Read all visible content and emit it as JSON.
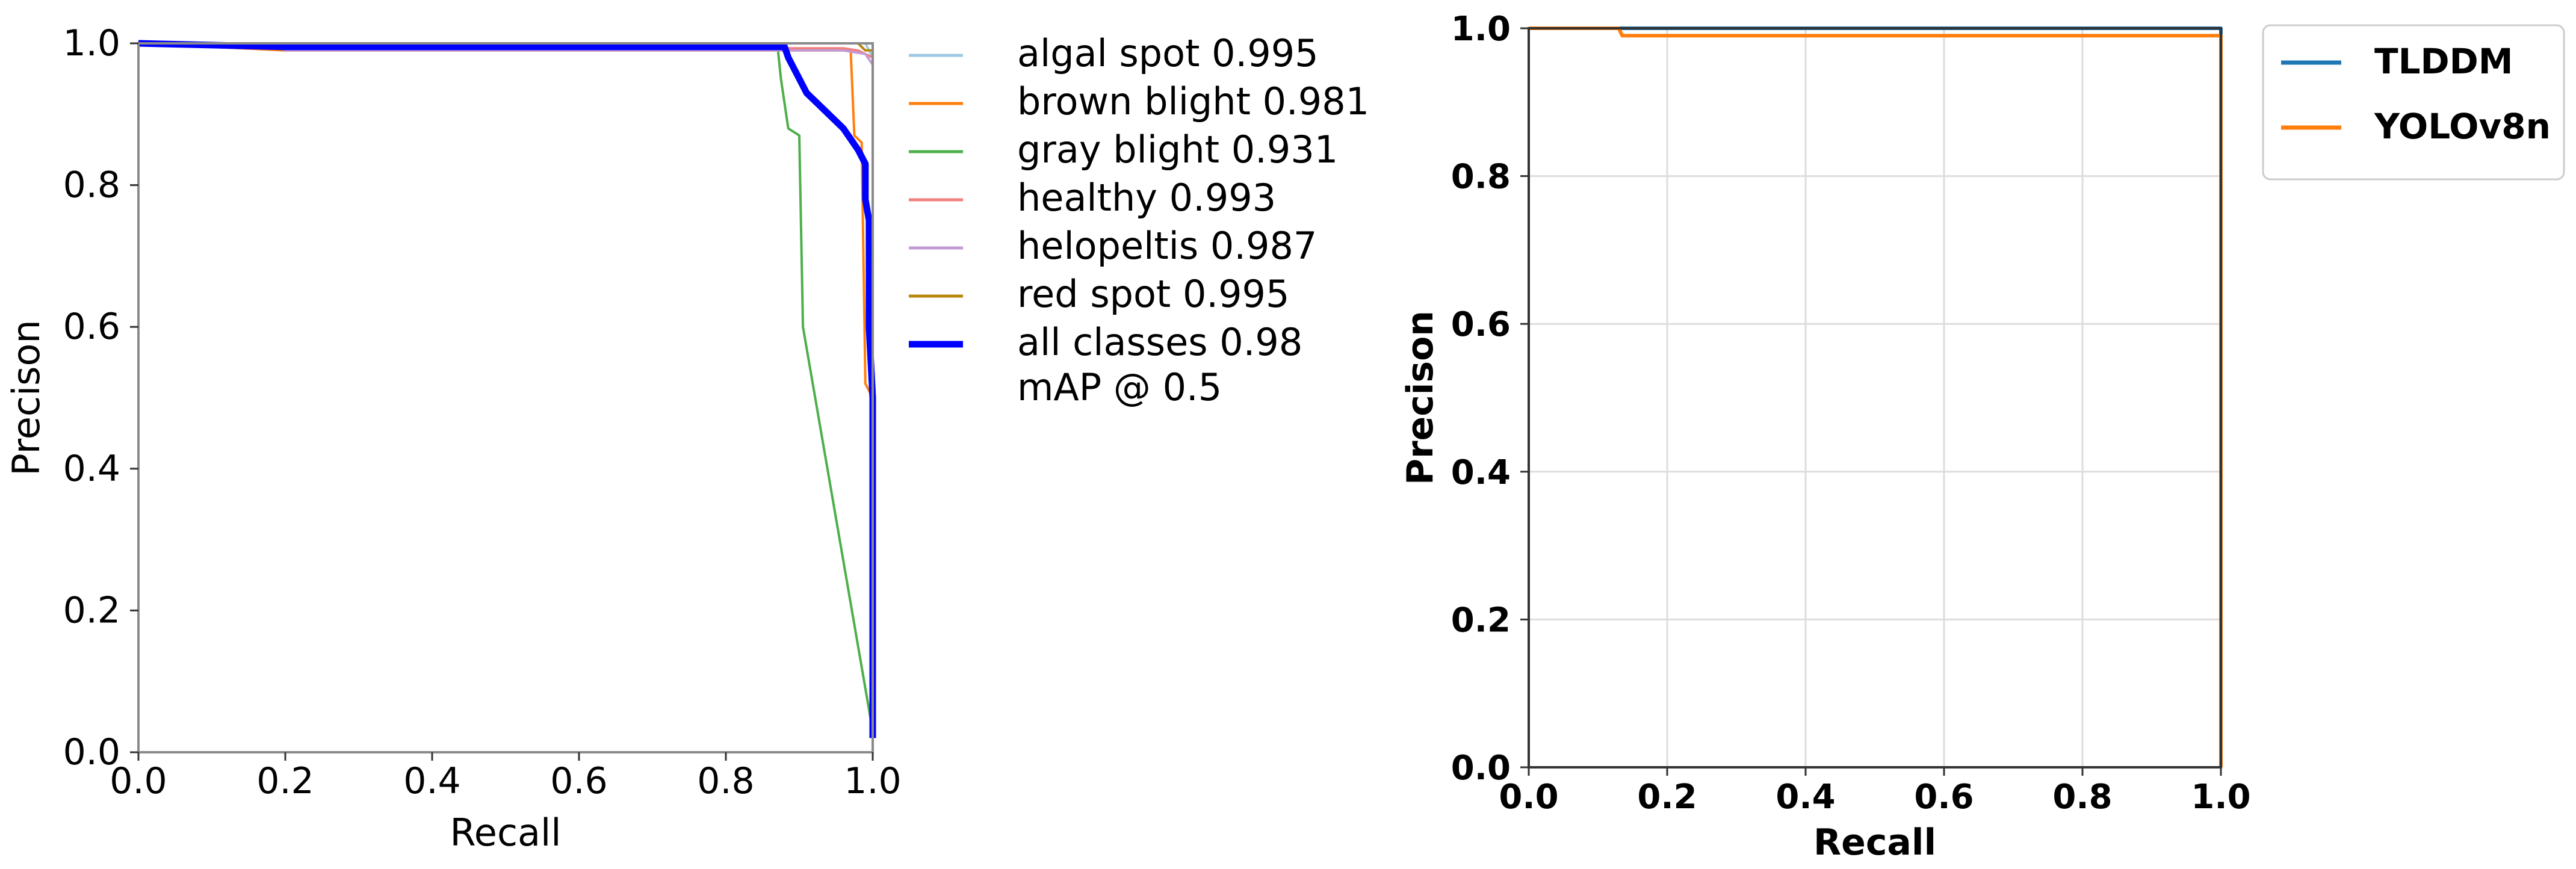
{
  "chart_data": [
    {
      "type": "line",
      "title": "",
      "xlabel": "Recall",
      "ylabel": "Precison",
      "xlim": [
        0,
        1
      ],
      "ylim": [
        0,
        1
      ],
      "xticks": [
        "0.0",
        "0.2",
        "0.4",
        "0.6",
        "0.8",
        "1.0"
      ],
      "yticks": [
        "0.0",
        "0.2",
        "0.4",
        "0.6",
        "0.8",
        "1.0"
      ],
      "grid": false,
      "legend_position": "outside-right",
      "legend_note": "mAP @ 0.5",
      "series": [
        {
          "name": "algal spot 0.995",
          "color": "#9ecae1",
          "width": 4,
          "points": [
            [
              0,
              1.0
            ],
            [
              0.99,
              1.0
            ],
            [
              0.995,
              0.99
            ],
            [
              1.0,
              0.98
            ],
            [
              1.0,
              0.0
            ]
          ]
        },
        {
          "name": "brown blight 0.981",
          "color": "#ff7f0e",
          "width": 4,
          "points": [
            [
              0,
              1.0
            ],
            [
              0.2,
              0.99
            ],
            [
              0.97,
              0.99
            ],
            [
              0.975,
              0.87
            ],
            [
              0.985,
              0.86
            ],
            [
              0.99,
              0.52
            ],
            [
              1.0,
              0.5
            ],
            [
              1.0,
              0.0
            ]
          ]
        },
        {
          "name": "gray blight 0.931",
          "color": "#4daf4a",
          "width": 4,
          "points": [
            [
              0,
              1.0
            ],
            [
              0.87,
              1.0
            ],
            [
              0.875,
              0.95
            ],
            [
              0.885,
              0.88
            ],
            [
              0.9,
              0.87
            ],
            [
              0.905,
              0.6
            ],
            [
              1.0,
              0.03
            ]
          ]
        },
        {
          "name": "healthy 0.993",
          "color": "#f08080",
          "width": 4,
          "points": [
            [
              0,
              1.0
            ],
            [
              0.21,
              0.993
            ],
            [
              0.96,
              0.993
            ],
            [
              0.98,
              0.99
            ],
            [
              1.0,
              0.98
            ],
            [
              1.0,
              0.0
            ]
          ]
        },
        {
          "name": "helopeltis 0.987",
          "color": "#c39bd3",
          "width": 4,
          "points": [
            [
              0,
              1.0
            ],
            [
              0.19,
              1.0
            ],
            [
              0.2,
              0.99
            ],
            [
              0.96,
              0.99
            ],
            [
              0.99,
              0.985
            ],
            [
              1.0,
              0.97
            ],
            [
              1.0,
              0.0
            ]
          ]
        },
        {
          "name": "red spot 0.995",
          "color": "#b8860b",
          "width": 4,
          "points": [
            [
              0,
              1.0
            ],
            [
              0.98,
              1.0
            ],
            [
              0.99,
              0.99
            ],
            [
              1.0,
              0.99
            ],
            [
              1.0,
              0.0
            ]
          ]
        },
        {
          "name": "all classes 0.98",
          "color": "#0000ff",
          "width": 11,
          "points": [
            [
              0,
              1.0
            ],
            [
              0.2,
              0.995
            ],
            [
              0.88,
              0.995
            ],
            [
              0.885,
              0.98
            ],
            [
              0.895,
              0.96
            ],
            [
              0.9,
              0.95
            ],
            [
              0.91,
              0.93
            ],
            [
              0.93,
              0.91
            ],
            [
              0.96,
              0.88
            ],
            [
              0.98,
              0.85
            ],
            [
              0.985,
              0.84
            ],
            [
              0.99,
              0.83
            ],
            [
              0.99,
              0.78
            ],
            [
              0.995,
              0.75
            ],
            [
              0.995,
              0.6
            ],
            [
              1.0,
              0.5
            ],
            [
              1.0,
              0.02
            ]
          ]
        }
      ]
    },
    {
      "type": "line",
      "title": "",
      "xlabel": "Recall",
      "ylabel": "Precison",
      "xlim": [
        0,
        1
      ],
      "ylim": [
        0,
        1
      ],
      "xticks": [
        "0.0",
        "0.2",
        "0.4",
        "0.6",
        "0.8",
        "1.0"
      ],
      "yticks": [
        "0.0",
        "0.2",
        "0.4",
        "0.6",
        "0.8",
        "1.0"
      ],
      "grid": true,
      "legend_position": "outside-right",
      "series": [
        {
          "name": "TLDDM",
          "color": "#1f77b4",
          "width": 6,
          "points": [
            [
              0,
              1.0
            ],
            [
              1.0,
              1.0
            ],
            [
              1.0,
              0.0
            ]
          ]
        },
        {
          "name": "YOLOv8n",
          "color": "#ff7f0e",
          "width": 6,
          "points": [
            [
              0,
              1.0
            ],
            [
              0.13,
              1.0
            ],
            [
              0.135,
              0.99
            ],
            [
              1.0,
              0.99
            ],
            [
              1.0,
              0.0
            ]
          ]
        }
      ]
    }
  ]
}
